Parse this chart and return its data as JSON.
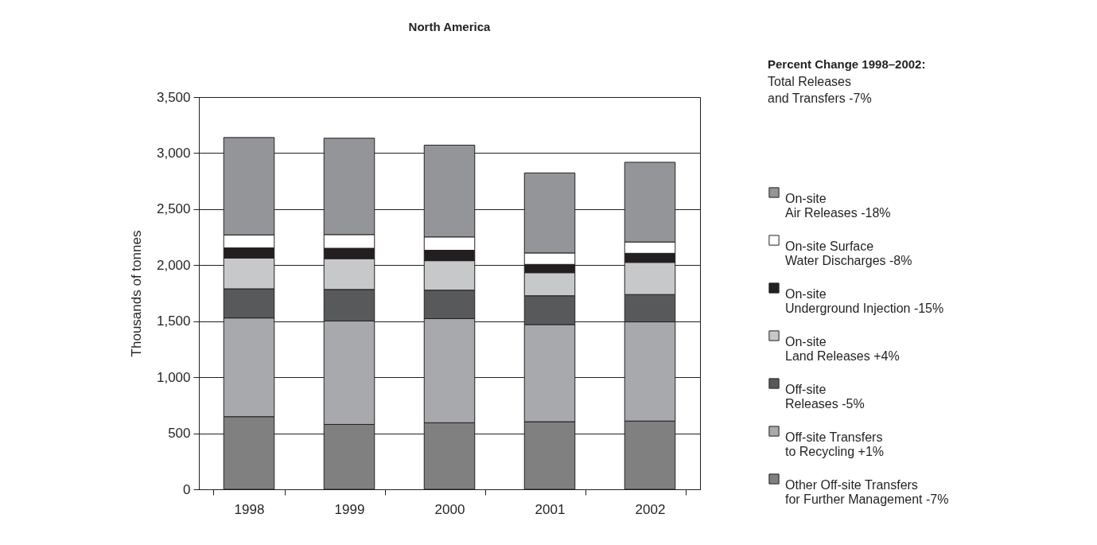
{
  "chart_data": {
    "type": "bar",
    "title": "North America",
    "ylabel": "Thousands of tonnes",
    "legend_title": "Percent Change 1998–2002:",
    "annotations": [
      "Total Releases\nand Transfers  -7%"
    ],
    "categories": [
      "1998",
      "1999",
      "2000",
      "2001",
      "2002"
    ],
    "stacked": true,
    "series": [
      {
        "name": "Other Off-site Transfers\nfor Further Management -7%",
        "color": "#808080",
        "values": [
          648,
          579,
          594,
          603,
          609
        ]
      },
      {
        "name": "Off-site Transfers\nto Recycling +1%",
        "color": "#a7a9ac",
        "values": [
          881,
          923,
          929,
          867,
          885
        ]
      },
      {
        "name": "Off-site\nReleases -5%",
        "color": "#58595b",
        "values": [
          260,
          281,
          254,
          257,
          244
        ]
      },
      {
        "name": "On-site\nLand Releases +4%",
        "color": "#c7c8ca",
        "values": [
          275,
          275,
          263,
          206,
          287
        ]
      },
      {
        "name": "On-site\nUnderground Injection -15%",
        "color": "#231f20",
        "values": [
          90,
          93,
          93,
          74,
          81
        ]
      },
      {
        "name": "On-site Surface\nWater Discharges -8%",
        "color": "#ffffff",
        "values": [
          116,
          122,
          119,
          102,
          101
        ]
      },
      {
        "name": "On-site\nAir Releases -18%",
        "color": "#939598",
        "values": [
          869,
          860,
          819,
          714,
          711
        ]
      }
    ],
    "ylim": [
      0,
      3500
    ],
    "yticks": [
      0,
      {
        "value": 500,
        "label": "500"
      },
      {
        "value": 1000,
        "label": "1,000"
      },
      {
        "value": 1500,
        "label": "1,500"
      },
      {
        "value": 2000,
        "label": "2,000"
      },
      {
        "value": 2500,
        "label": "2,500"
      },
      {
        "value": 3000,
        "label": "3,000"
      },
      {
        "value": 3500,
        "label": "3,500"
      }
    ],
    "grid": "y",
    "legend": "right"
  }
}
